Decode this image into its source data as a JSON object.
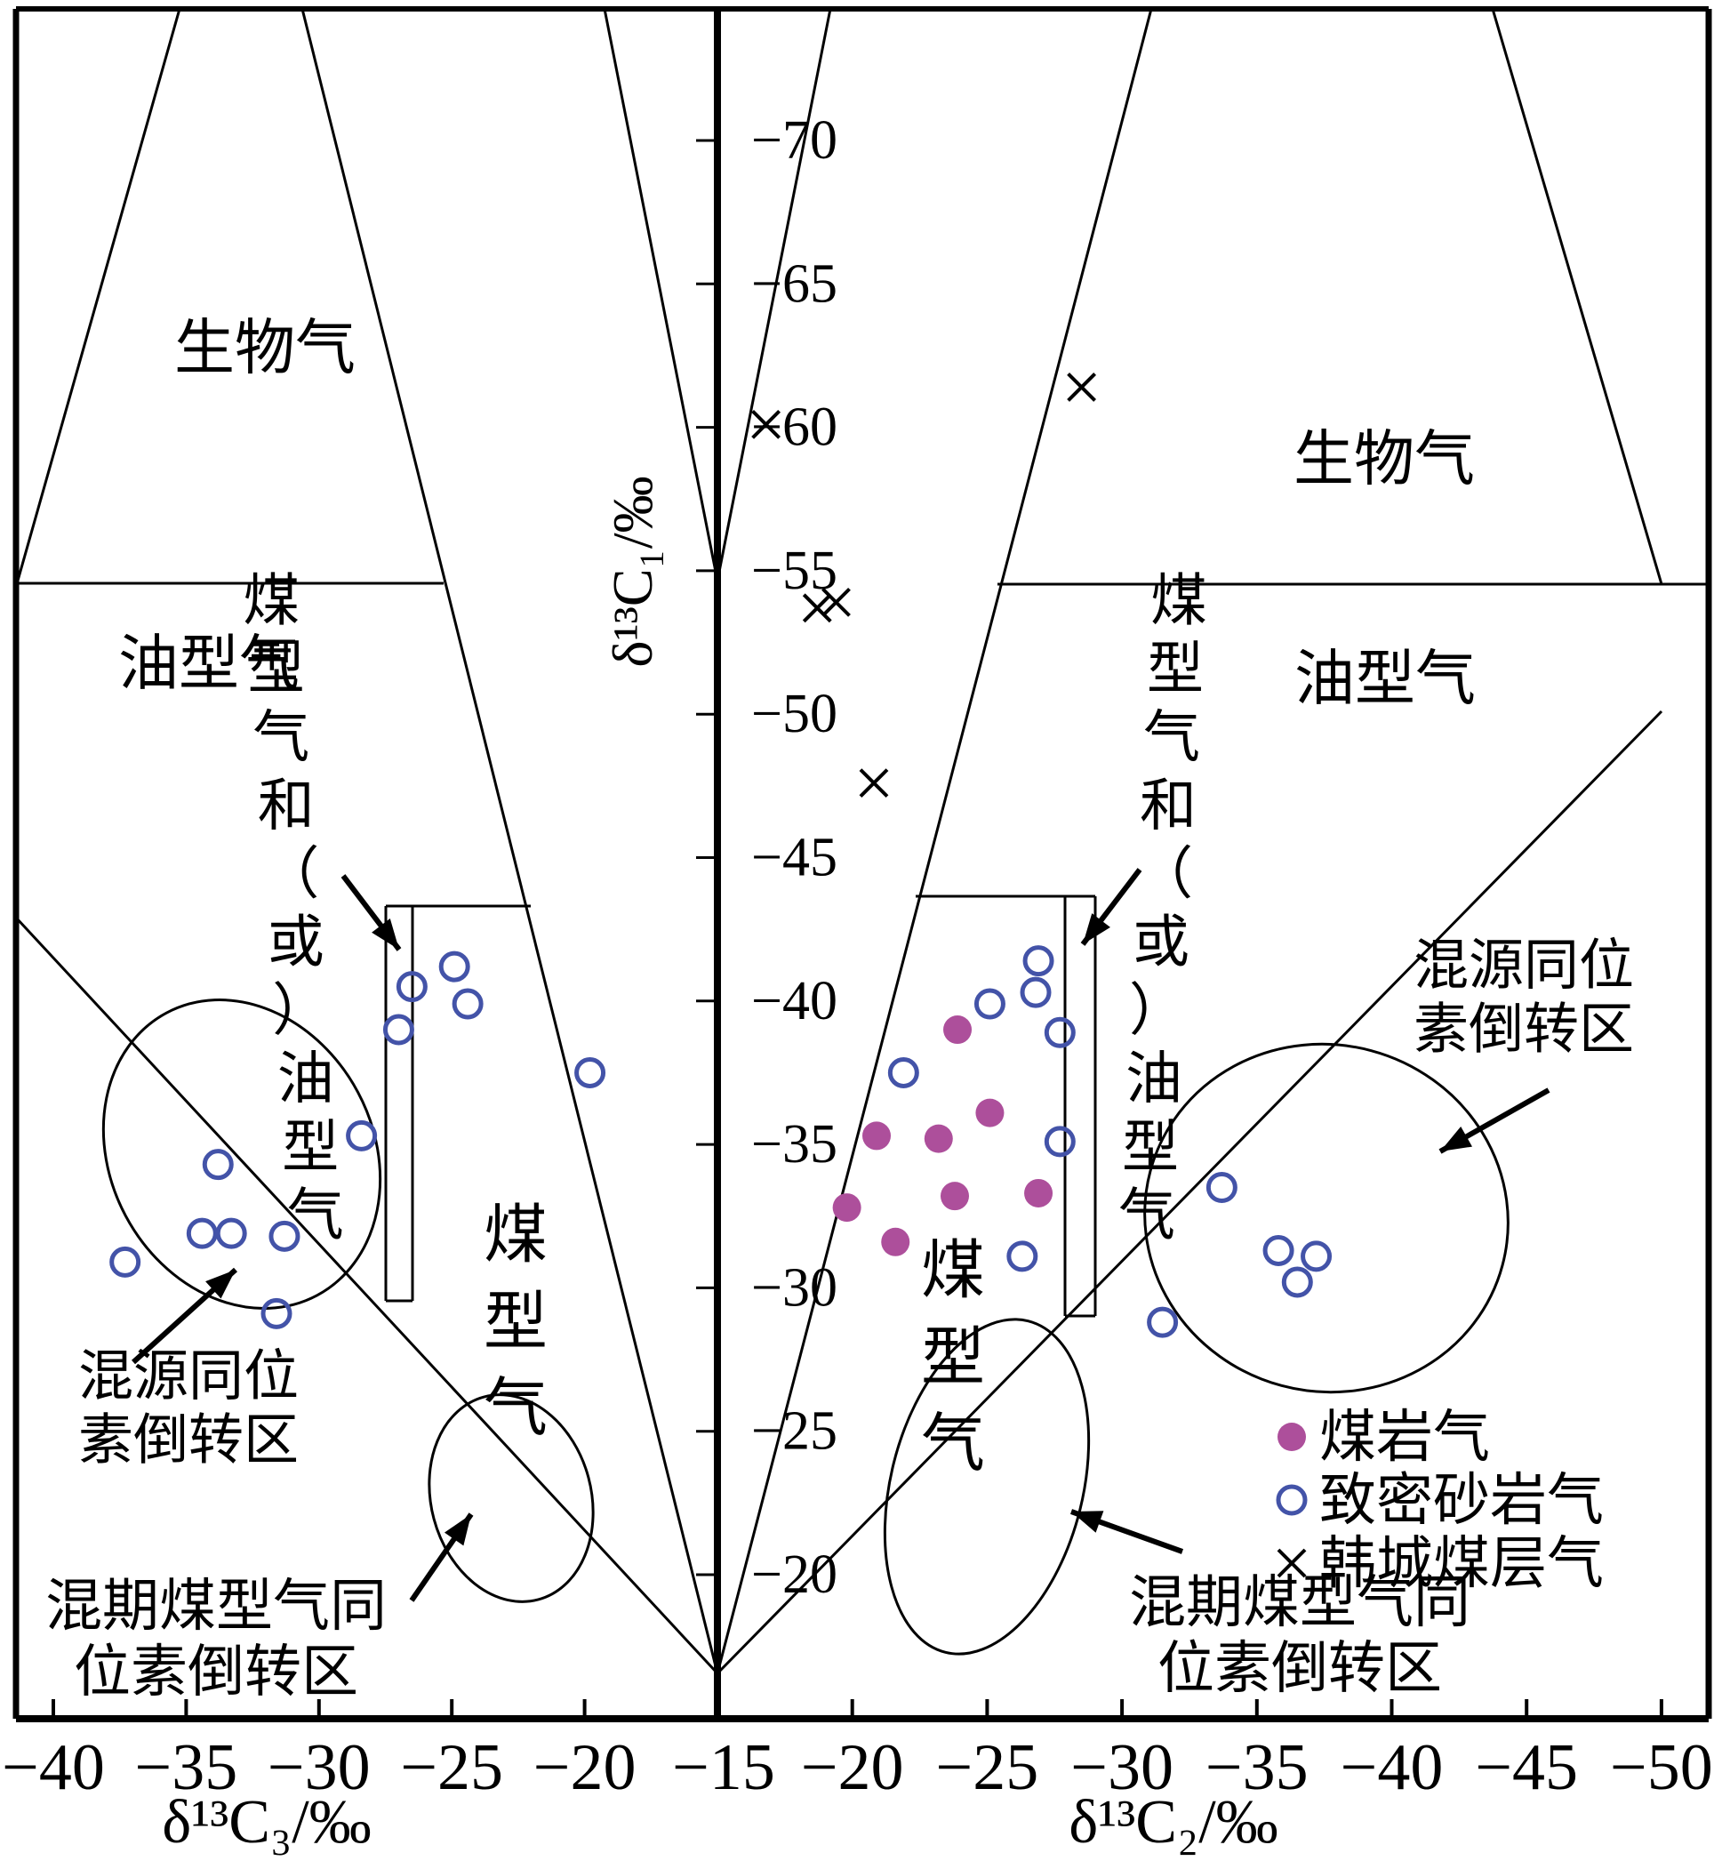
{
  "figure": {
    "description": "Dual-panel natural gas genetic identification chart (carbon isotope cross-plots)",
    "background": "#ffffff",
    "line_color": "#000000"
  },
  "chart_data": {
    "type": "scatter",
    "ylabel": "δ¹³C₁/‰",
    "y_ticks": [
      -70,
      -65,
      -60,
      -55,
      -50,
      -45,
      -40,
      -35,
      -30,
      -25,
      -20
    ],
    "y_range_top_to_bottom": [
      -74.5,
      -14.5
    ],
    "shared_center_tick": "-15",
    "legend_position": "inside right panel, lower right",
    "legend": [
      {
        "label": "煤岩气",
        "marker": "filled-circle",
        "color": "#ad4f9b"
      },
      {
        "label": "致密砂岩气",
        "marker": "open-circle",
        "color": "#4353a8"
      },
      {
        "label": "韩城煤层气",
        "marker": "x",
        "color": "#000000"
      }
    ],
    "panels": [
      {
        "id": "left",
        "xlabel": "δ¹³C₃/‰",
        "x_ticks": [
          -40,
          -35,
          -30,
          -25,
          -20
        ],
        "x_direction": "values increase toward center axis (-40 left, -15 at center)",
        "region_labels": [
          {
            "text": "生物气",
            "cx": 298,
            "cy": 390,
            "orientation": "horizontal",
            "size": 68
          },
          {
            "text": "油型气",
            "cx": 235,
            "cy": 745,
            "orientation": "horizontal",
            "size": 68
          },
          {
            "text": "煤型气",
            "cx": 580,
            "cy": 1485,
            "orientation": "vertical",
            "size": 72
          },
          {
            "text": "煤型气和（或）油型气",
            "cx": 330,
            "cy": 1020,
            "orientation": "vertical-tilted",
            "size": 64
          },
          {
            "text": "混源同位\n素倒转区",
            "cx": 212,
            "cy": 1582,
            "orientation": "horizontal",
            "size": 62
          },
          {
            "text": "混期煤型气同\n位素倒转区",
            "cx": 243,
            "cy": 1842,
            "orientation": "horizontal",
            "size": 64
          }
        ],
        "series": [
          {
            "name": "致密砂岩气",
            "marker": "open-circle",
            "color": "#4353a8",
            "points": [
              [
                -24.9,
                -41.2
              ],
              [
                -26.5,
                -40.5
              ],
              [
                -24.4,
                -39.9
              ],
              [
                -27.0,
                -39.0
              ],
              [
                -19.8,
                -37.5
              ],
              [
                -28.4,
                -35.3
              ],
              [
                -33.8,
                -34.3
              ],
              [
                -34.4,
                -31.9
              ],
              [
                -33.3,
                -31.9
              ],
              [
                -31.3,
                -31.8
              ],
              [
                -37.3,
                -30.9
              ],
              [
                -31.6,
                -29.1
              ]
            ]
          }
        ]
      },
      {
        "id": "right",
        "xlabel": "δ¹³C₂/‰",
        "x_ticks": [
          -20,
          -25,
          -30,
          -35,
          -40,
          -45,
          -50
        ],
        "x_direction": "axis reversed: -15 at center axis, -50 at right edge",
        "region_labels": [
          {
            "text": "生物气",
            "cx": 1557,
            "cy": 515,
            "orientation": "horizontal",
            "size": 68
          },
          {
            "text": "油型气",
            "cx": 1558,
            "cy": 762,
            "orientation": "horizontal",
            "size": 68
          },
          {
            "text": "煤型气",
            "cx": 1072,
            "cy": 1525,
            "orientation": "vertical",
            "size": 72
          },
          {
            "text": "煤型气和（或）油型气",
            "cx": 1308,
            "cy": 1020,
            "orientation": "vertical-tilted",
            "size": 64
          },
          {
            "text": "混源同位\n素倒转区",
            "cx": 1714,
            "cy": 1120,
            "orientation": "horizontal",
            "size": 62
          },
          {
            "text": "混期煤型气同\n位素倒转区",
            "cx": 1462,
            "cy": 1838,
            "orientation": "horizontal",
            "size": 64
          }
        ],
        "series": [
          {
            "name": "煤岩气",
            "marker": "filled-circle",
            "color": "#ad4f9b",
            "points": [
              [
                -23.9,
                -39.0
              ],
              [
                -25.1,
                -36.1
              ],
              [
                -20.9,
                -35.3
              ],
              [
                -23.2,
                -35.2
              ],
              [
                -23.8,
                -33.2
              ],
              [
                -26.9,
                -33.3
              ],
              [
                -19.8,
                -32.8
              ],
              [
                -21.6,
                -31.6
              ]
            ]
          },
          {
            "name": "致密砂岩气",
            "marker": "open-circle",
            "color": "#4353a8",
            "points": [
              [
                -26.9,
                -41.4
              ],
              [
                -26.8,
                -40.3
              ],
              [
                -25.1,
                -39.9
              ],
              [
                -27.7,
                -38.9
              ],
              [
                -21.9,
                -37.5
              ],
              [
                -27.7,
                -35.1
              ],
              [
                -26.3,
                -31.1
              ],
              [
                -33.7,
                -33.5
              ],
              [
                -35.8,
                -31.3
              ],
              [
                -37.2,
                -31.1
              ],
              [
                -36.5,
                -30.2
              ],
              [
                -31.5,
                -28.8
              ]
            ]
          },
          {
            "name": "韩城煤层气",
            "marker": "x",
            "color": "#000000",
            "points": [
              [
                -28.5,
                -61.4
              ],
              [
                -16.8,
                -60.1
              ],
              [
                -18.7,
                -53.7
              ],
              [
                -19.4,
                -53.9
              ],
              [
                -20.8,
                -47.6
              ]
            ]
          }
        ]
      }
    ]
  }
}
